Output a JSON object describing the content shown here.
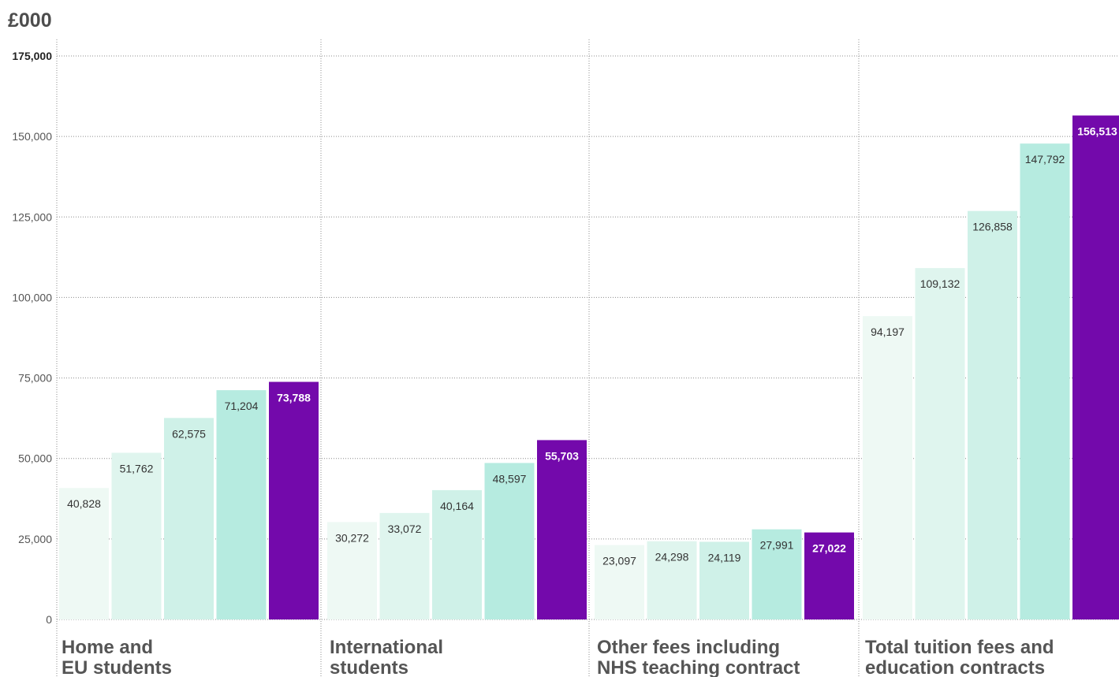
{
  "chart_data": {
    "type": "bar",
    "unit_label": "£000",
    "categories": [
      [
        "Home and",
        "EU students"
      ],
      [
        "International",
        "students"
      ],
      [
        "Other fees including",
        "NHS teaching contract"
      ],
      [
        "Total tuition fees and",
        "education contracts"
      ]
    ],
    "series": [
      {
        "values": [
          40828,
          30272,
          23097,
          94197
        ]
      },
      {
        "values": [
          51762,
          33072,
          24298,
          109132
        ]
      },
      {
        "values": [
          62575,
          40164,
          24119,
          126858
        ]
      },
      {
        "values": [
          71204,
          48597,
          27991,
          147792
        ]
      },
      {
        "values": [
          73788,
          55703,
          27022,
          156513
        ]
      }
    ],
    "value_labels": [
      [
        "40,828",
        "51,762",
        "62,575",
        "71,204",
        "73,788"
      ],
      [
        "30,272",
        "33,072",
        "40,164",
        "48,597",
        "55,703"
      ],
      [
        "23,097",
        "24,298",
        "24,119",
        "27,991",
        "27,022"
      ],
      [
        "94,197",
        "109,132",
        "126,858",
        "147,792",
        "156,513"
      ]
    ],
    "y_ticks": [
      0,
      25000,
      50000,
      75000,
      100000,
      125000,
      150000,
      175000
    ],
    "y_tick_labels": [
      "0",
      "25,000",
      "50,000",
      "75,000",
      "100,000",
      "125,000",
      "150,000",
      "175,000"
    ],
    "ylim": [
      0,
      175000
    ],
    "grid": true,
    "colors": [
      "#eef9f4",
      "#dff5ee",
      "#cff1e8",
      "#b6ebe0",
      "#7309ab"
    ]
  }
}
